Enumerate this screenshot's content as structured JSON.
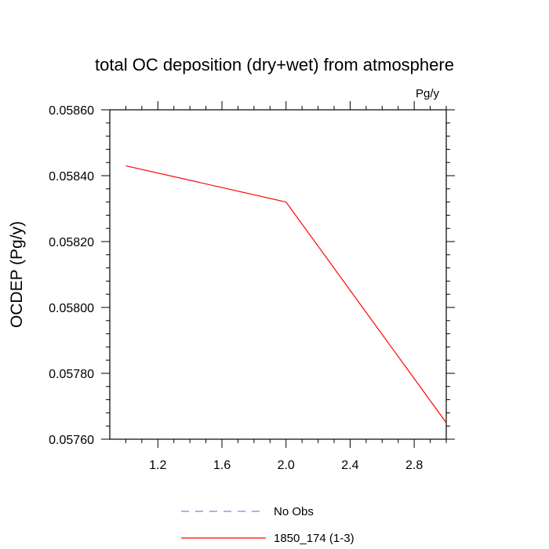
{
  "chart_data": {
    "type": "line",
    "title": "total OC deposition (dry+wet) from atmosphere",
    "units_label": "Pg/y",
    "xlabel": "",
    "ylabel": "OCDEP  (Pg/y)",
    "xlim": [
      0.9,
      3.0
    ],
    "ylim": [
      0.0576,
      0.0586
    ],
    "x_ticks": [
      1.2,
      1.6,
      2.0,
      2.4,
      2.8
    ],
    "x_tick_labels": [
      "1.2",
      "1.6",
      "2.0",
      "2.4",
      "2.8"
    ],
    "y_ticks": [
      0.0576,
      0.0578,
      0.058,
      0.0582,
      0.0584,
      0.0586
    ],
    "y_tick_labels": [
      "0.05760",
      "0.05780",
      "0.05800",
      "0.05820",
      "0.05840",
      "0.05860"
    ],
    "grid": false,
    "legend_position": "bottom-center",
    "series": [
      {
        "name": "No Obs",
        "color": "#8080e0",
        "dash": "dashed",
        "x": [],
        "y": []
      },
      {
        "name": "1850_174 (1-3)",
        "color": "#ff0000",
        "dash": "solid",
        "x": [
          1.0,
          2.0,
          3.0
        ],
        "y": [
          0.05843,
          0.05832,
          0.05765
        ]
      }
    ]
  }
}
